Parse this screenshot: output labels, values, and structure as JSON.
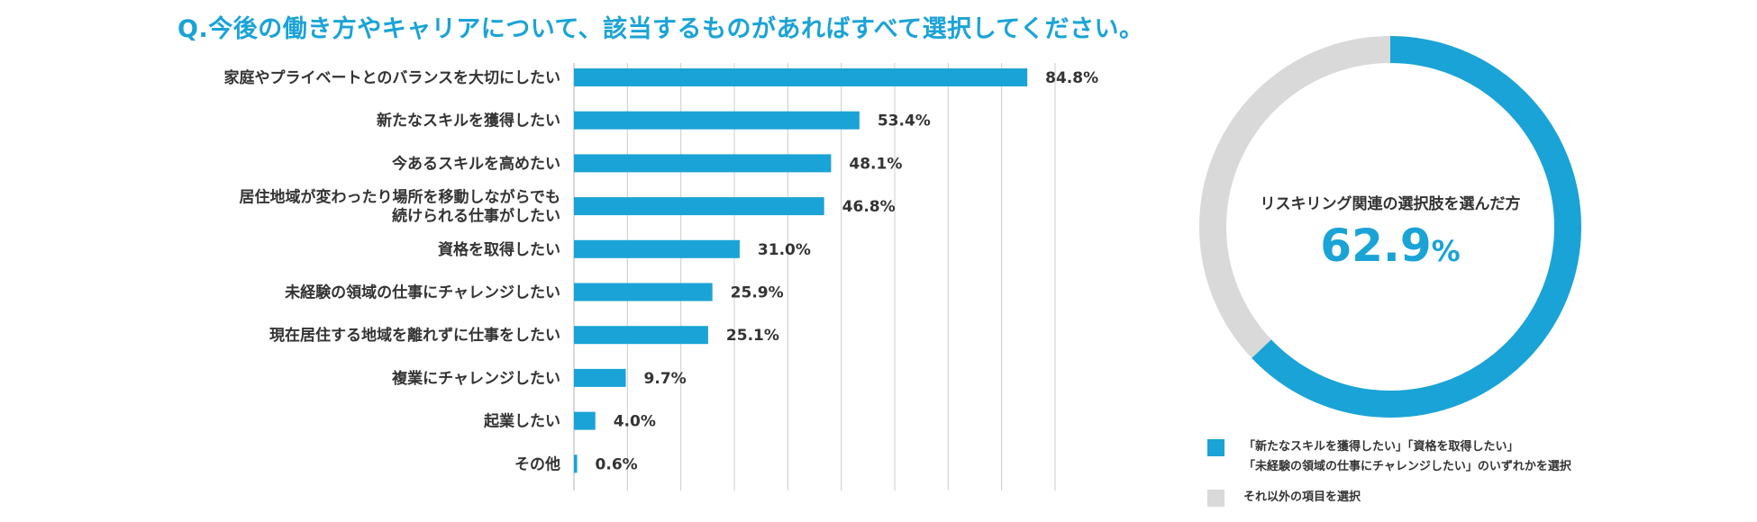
{
  "title": "Q.今後の働き方やキャリアについて、該当するものがあればすべて選択してください。",
  "chart_data": [
    {
      "type": "bar",
      "orientation": "horizontal",
      "categories": [
        [
          "家庭やプライベートとのバランスを大切にしたい"
        ],
        [
          "新たなスキルを獲得したい"
        ],
        [
          "今あるスキルを高めたい"
        ],
        [
          "居住地域が変わったり場所を移動しながらでも",
          "続けられる仕事がしたい"
        ],
        [
          "資格を取得したい"
        ],
        [
          "未経験の領域の仕事にチャレンジしたい"
        ],
        [
          "現在居住する地域を離れずに仕事をしたい"
        ],
        [
          "複業にチャレンジしたい"
        ],
        [
          "起業したい"
        ],
        [
          "その他"
        ]
      ],
      "values": [
        84.8,
        53.4,
        48.1,
        46.8,
        31.0,
        25.9,
        25.1,
        9.7,
        4.0,
        0.6
      ],
      "value_labels": [
        "84.8%",
        "53.4%",
        "48.1%",
        "46.8%",
        "31.0%",
        "25.9%",
        "25.1%",
        "9.7%",
        "4.0%",
        "0.6%"
      ],
      "xlim": [
        0,
        90
      ],
      "gridlines": [
        0,
        10,
        20,
        30,
        40,
        50,
        60,
        70,
        80,
        90
      ],
      "grid": true,
      "color": "#1aa3d6",
      "grid_color": "#cccccc"
    },
    {
      "type": "pie",
      "donut": true,
      "caption": "リスキリング関連の選択肢を選んだ方",
      "highlight_value": "62.9",
      "highlight_unit": "%",
      "slices": [
        {
          "value": 62.9,
          "color": "#1aa3d6"
        },
        {
          "value": 37.1,
          "color": "#d9d9d9"
        }
      ]
    }
  ],
  "legend": [
    {
      "color": "#1aa3d6",
      "lines": [
        "「新たなスキルを獲得したい」「資格を取得したい」",
        "「未経験の領域の仕事にチャレンジしたい」のいずれかを選択"
      ]
    },
    {
      "color": "#d9d9d9",
      "lines": [
        "それ以外の項目を選択"
      ]
    }
  ]
}
